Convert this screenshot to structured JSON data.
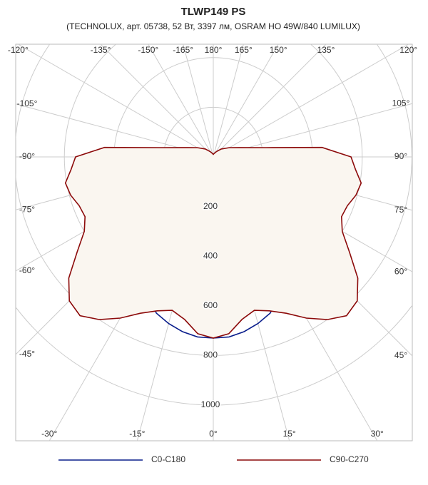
{
  "chart_data": {
    "type": "polar",
    "title": "TLWP149 PS",
    "subtitle": "(TECHNOLUX, арт. 05738, 52 Вт, 3397 лм, OSRAM HO 49W/840 LUMILUX)",
    "angles": [
      -180,
      -165,
      -150,
      -135,
      -120,
      -110,
      -100,
      -95,
      -90,
      -85,
      -80,
      -75,
      -70,
      -65,
      -60,
      -55,
      -50,
      -45,
      -40,
      -35,
      -30,
      -25,
      -20,
      -15,
      -10,
      -5,
      0,
      5,
      10,
      15,
      20,
      25,
      30,
      35,
      40,
      45,
      50,
      55,
      60,
      65,
      70,
      75,
      80,
      85,
      90,
      95,
      100,
      110,
      120,
      135,
      150,
      165,
      180
    ],
    "series": [
      {
        "name": "C0-C180",
        "color": "#0a1e8c",
        "fill": "none",
        "values": [
          0,
          0,
          0,
          0,
          0,
          0,
          0,
          0,
          5,
          25,
          55,
          90,
          130,
          175,
          225,
          280,
          340,
          400,
          460,
          520,
          575,
          625,
          670,
          695,
          715,
          728,
          730,
          728,
          715,
          695,
          670,
          625,
          575,
          520,
          460,
          400,
          340,
          280,
          225,
          175,
          130,
          90,
          55,
          25,
          5,
          0,
          0,
          0,
          0,
          0,
          0,
          0,
          0
        ]
      },
      {
        "name": "C90-C270",
        "color": "#8c0a0a",
        "fill": "#faf6f0",
        "values": [
          10,
          15,
          25,
          45,
          75,
          110,
          215,
          440,
          555,
          575,
          605,
          595,
          575,
          570,
          600,
          670,
          760,
          820,
          835,
          800,
          750,
          695,
          660,
          640,
          665,
          715,
          730,
          715,
          665,
          640,
          660,
          695,
          750,
          800,
          835,
          820,
          760,
          670,
          600,
          570,
          575,
          595,
          605,
          575,
          555,
          440,
          215,
          110,
          75,
          45,
          25,
          15,
          10
        ]
      }
    ],
    "rlim": [
      0,
      1000
    ],
    "rticks": [
      200,
      400,
      600,
      800,
      1000
    ],
    "angle_ticks": [
      {
        "value": -180,
        "label": "180°"
      },
      {
        "value": -165,
        "label": "-165°"
      },
      {
        "value": -150,
        "label": "-150°"
      },
      {
        "value": -135,
        "label": "-135°"
      },
      {
        "value": -120,
        "label": "-120°"
      },
      {
        "value": -105,
        "label": "-105°"
      },
      {
        "value": -90,
        "label": "-90°"
      },
      {
        "value": -75,
        "label": "-75°"
      },
      {
        "value": -60,
        "label": "-60°"
      },
      {
        "value": -45,
        "label": "-45°"
      },
      {
        "value": -30,
        "label": "-30°"
      },
      {
        "value": -15,
        "label": "-15°"
      },
      {
        "value": 0,
        "label": "0°"
      },
      {
        "value": 15,
        "label": "15°"
      },
      {
        "value": 30,
        "label": "30°"
      },
      {
        "value": 45,
        "label": "45°"
      },
      {
        "value": 60,
        "label": "60°"
      },
      {
        "value": 75,
        "label": "75°"
      },
      {
        "value": 90,
        "label": "90°"
      },
      {
        "value": 105,
        "label": "105°"
      },
      {
        "value": 120,
        "label": "120°"
      },
      {
        "value": 135,
        "label": "135°"
      },
      {
        "value": 150,
        "label": "150°"
      },
      {
        "value": 165,
        "label": "165°"
      }
    ],
    "grid": true
  }
}
